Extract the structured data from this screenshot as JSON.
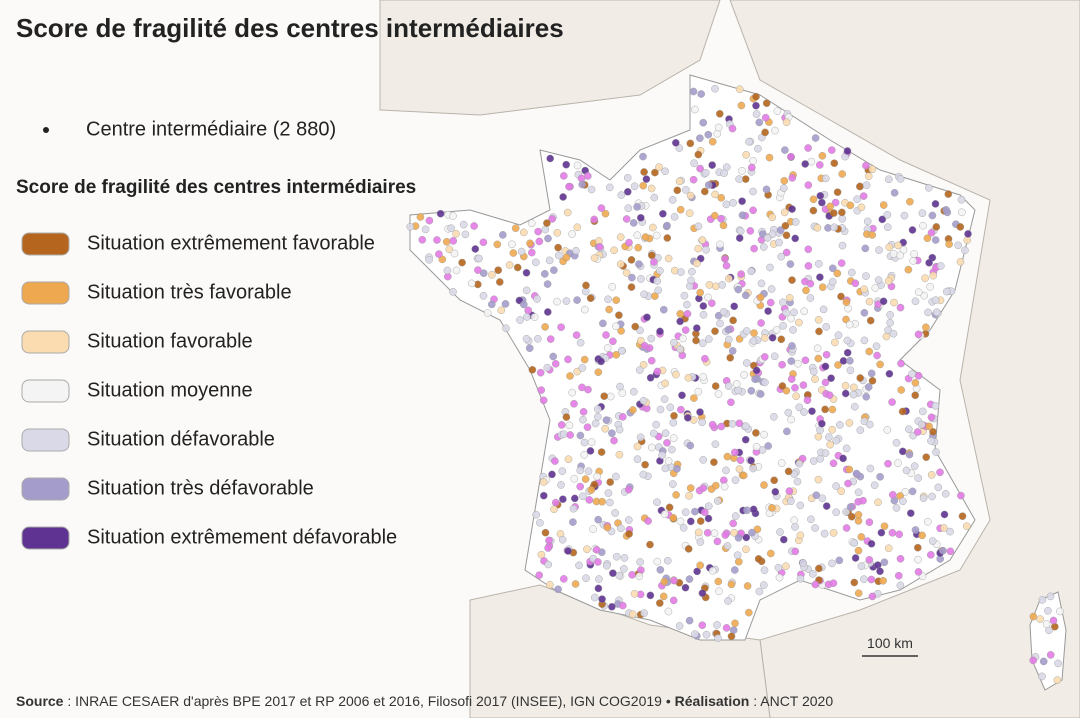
{
  "title": "Score de fragilité des centres intermédiaires",
  "legend": {
    "point_label": "Centre intermédiaire (2 880)",
    "title": "Score de fragilité des centres intermédiaires",
    "items": [
      {
        "label": "Situation extrêmement favorable",
        "color": "#b5651d"
      },
      {
        "label": "Situation très favorable",
        "color": "#eea84f"
      },
      {
        "label": "Situation favorable",
        "color": "#fbdcb0"
      },
      {
        "label": "Situation moyenne",
        "color": "#f4f4f4"
      },
      {
        "label": "Situation défavorable",
        "color": "#d9d9e8"
      },
      {
        "label": "Situation très défavorable",
        "color": "#a49ccb"
      },
      {
        "label": "Situation extrêmement défavorable",
        "color": "#5e3391"
      }
    ]
  },
  "scale_label": "100 km",
  "source": {
    "label": "Source",
    "text": " : INRAE CESAER d'après BPE 2017 et RP 2006 et 2016, Filosofi 2017 (INSEE), IGN COG2019 • ",
    "credit_label": "Réalisation",
    "credit_text": " : ANCT 2020"
  }
}
